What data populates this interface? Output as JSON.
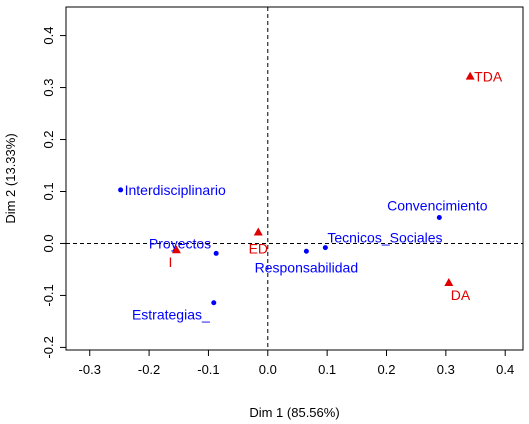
{
  "chart_data": {
    "type": "scatter",
    "xlabel": "Dim 1 (85.56%)",
    "ylabel": "Dim 2 (13.33%)",
    "xlim": [
      -0.34,
      0.43
    ],
    "ylim": [
      -0.205,
      0.455
    ],
    "xticks": [
      -0.3,
      -0.2,
      -0.1,
      0.0,
      0.1,
      0.2,
      0.3,
      0.4
    ],
    "xtick_labels": [
      "-0.3",
      "-0.2",
      "-0.1",
      "0.0",
      "0.1",
      "0.2",
      "0.3",
      "0.4"
    ],
    "yticks": [
      -0.2,
      -0.1,
      0.0,
      0.1,
      0.2,
      0.3,
      0.4
    ],
    "ytick_labels": [
      "-0.2",
      "-0.1",
      "0.0",
      "0.1",
      "0.2",
      "0.3",
      "0.4"
    ],
    "reference_lines": {
      "x": 0,
      "y": 0,
      "style": "dashed"
    },
    "grid": false,
    "series": [
      {
        "color": "#0000ff",
        "marker": "circle",
        "points": [
          {
            "label": "Interdisciplinario",
            "x": -0.248,
            "y": 0.103,
            "label_pos": "right"
          },
          {
            "label": "Proyectos",
            "x": -0.087,
            "y": -0.019,
            "label_pos": "upper-left"
          },
          {
            "label": "Estrategias_",
            "x": -0.091,
            "y": -0.114,
            "label_pos": "lower-left"
          },
          {
            "label": "Responsabilidad",
            "x": 0.065,
            "y": -0.015,
            "label_pos": "below"
          },
          {
            "label": "Tecnicos_Sociales",
            "x": 0.097,
            "y": -0.008,
            "label_pos": "upper-right"
          },
          {
            "label": "Convencimiento",
            "x": 0.289,
            "y": 0.05,
            "label_pos": "upper"
          }
        ]
      },
      {
        "color": "#e00000",
        "marker": "triangle",
        "points": [
          {
            "label": "TDA",
            "x": 0.341,
            "y": 0.321,
            "label_pos": "right"
          },
          {
            "label": "ED",
            "x": -0.016,
            "y": 0.021,
            "label_pos": "below"
          },
          {
            "label": "I",
            "x": -0.154,
            "y": -0.013,
            "label_pos": "lower-left"
          },
          {
            "label": "DA",
            "x": 0.305,
            "y": -0.076,
            "label_pos": "lower-right"
          }
        ]
      }
    ]
  }
}
